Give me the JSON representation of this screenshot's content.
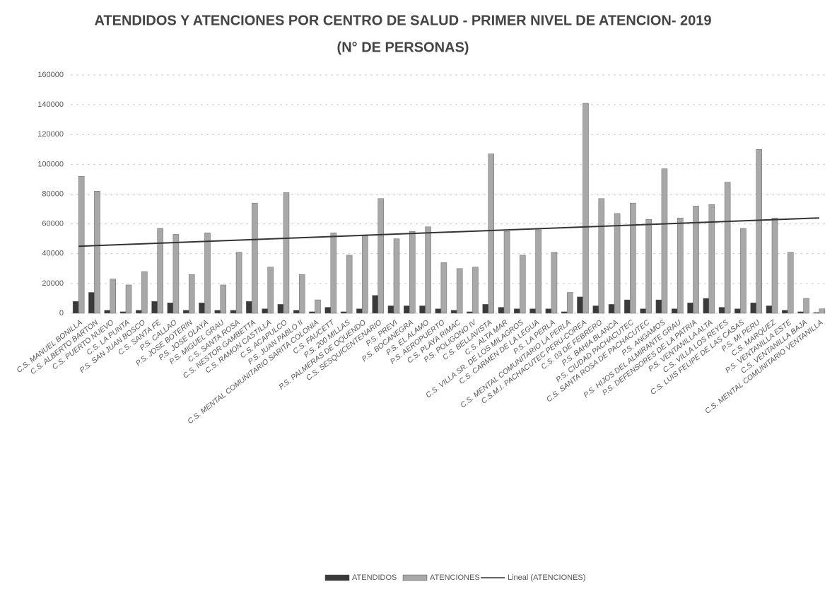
{
  "chart_data": {
    "type": "bar",
    "title": "ATENDIDOS Y ATENCIONES POR CENTRO DE SALUD - PRIMER NIVEL DE ATENCION- 2019",
    "subtitle": "(N° DE PERSONAS)",
    "categories": [
      "C.S. MANUEL BONILLA",
      "C.S. ALBERTO BARTON",
      "C.S. PUERTO NUEVO",
      "C.S. LA PUNTA",
      "P.S. SAN JUAN BOSCO",
      "C.S. SANTA FE",
      "P.S. CALLAO",
      "P.S. JOSE BOTERIN",
      "P.S. JOSE OLAYA",
      "P.S. MIGUEL GRAU",
      "C.S. SANTA ROSA",
      "C.S. NESTOR GAMBETTA",
      "C.S. RAMON CASTILLA",
      "C.S. ACAPULCO",
      "P.S. JUAN PABLO II",
      "C.S. MENTAL COMUNITARIO SARITA COLONIA",
      "C.S. FAUCETT",
      "P.S. 200 MILLAS",
      "P.S. PALMERAS DE OQUENDO",
      "C.S. SESQUICENTENARIO",
      "P.S. PREVI",
      "P.S. BOCANEGRA",
      "P.S. EL ALAMO",
      "P.S. AEROPUERTO",
      "C.S. PLAYA RIMAC",
      "P.S. POLIGONO IV",
      "C.S. BELLAVISTA",
      "C.S. ALTA MAR",
      "C.S. VILLA SR. DE LOS MILAGROS",
      "C.S. CARMEN DE LA LEGUA",
      "P.S. LA PERLA",
      "C.S. MENTAL COMUNITARIO LA PERLA",
      "C.S.M.I. PACHACUTEC PERU-COREA",
      "C.S. 03 DE FEBRERO",
      "P.S. BAHIA BLANCA",
      "P.S. CIUDAD PACHACUTEC",
      "C.S. SANTA ROSA DE PACHACUTEC",
      "P.S. ANGAMOS",
      "P.S. HIJOS DEL ALMIRANTE GRAU",
      "P.S. DEFENSORES DE LA PATRIA",
      "P.S. VENTANILLA ALTA",
      "C.S. VILLA LOS REYES",
      "C.S. LUIS FELIPE DE LAS CASAS",
      "P.S. MI PERU",
      "C.S. MARQUEZ",
      "P.S. VENTANILLA ESTE",
      "C.S. VENTANILLA BAJA",
      "C.S. MENTAL COMUNITARIO VENTANILLA"
    ],
    "series": [
      {
        "name": "ATENDIDOS",
        "color": "#3a3a3a",
        "values": [
          8000,
          14000,
          2000,
          1000,
          2000,
          8000,
          7000,
          2000,
          7000,
          2000,
          2000,
          8000,
          3000,
          6000,
          2000,
          1000,
          4000,
          1000,
          3000,
          12000,
          5000,
          5000,
          5000,
          3000,
          2000,
          1000,
          6000,
          4000,
          3000,
          3000,
          3000,
          1000,
          11000,
          5000,
          6000,
          9000,
          3000,
          9000,
          3000,
          7000,
          10000,
          4000,
          3000,
          7000,
          5000,
          2000,
          1000,
          500
        ]
      },
      {
        "name": "ATENCIONES",
        "color": "#a8a8a8",
        "values": [
          92000,
          82000,
          23000,
          19000,
          28000,
          57000,
          53000,
          26000,
          54000,
          19000,
          41000,
          74000,
          31000,
          81000,
          26000,
          9000,
          54000,
          39000,
          52000,
          77000,
          50000,
          55000,
          58000,
          34000,
          30000,
          31000,
          107000,
          55000,
          39000,
          56000,
          41000,
          14000,
          141000,
          77000,
          67000,
          74000,
          63000,
          97000,
          64000,
          72000,
          73000,
          88000,
          57000,
          110000,
          64000,
          41000,
          10000,
          3000
        ]
      }
    ],
    "trendline": {
      "name": "Lineal (ATENCIONES)",
      "color": "#333333",
      "start": 45000,
      "end": 64000
    },
    "ylim": [
      0,
      160000
    ],
    "yticks": [
      0,
      20000,
      40000,
      60000,
      80000,
      100000,
      120000,
      140000,
      160000
    ],
    "grid": true
  }
}
